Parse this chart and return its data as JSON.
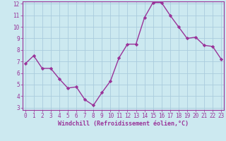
{
  "x": [
    0,
    1,
    2,
    3,
    4,
    5,
    6,
    7,
    8,
    9,
    10,
    11,
    12,
    13,
    14,
    15,
    16,
    17,
    18,
    19,
    20,
    21,
    22,
    23
  ],
  "y": [
    6.8,
    7.5,
    6.4,
    6.4,
    5.5,
    4.7,
    4.8,
    3.7,
    3.2,
    4.3,
    5.3,
    7.3,
    8.5,
    8.5,
    10.8,
    12.1,
    12.1,
    11.0,
    10.0,
    9.0,
    9.1,
    8.4,
    8.3,
    7.2
  ],
  "xlabel": "Windchill (Refroidissement éolien,°C)",
  "ylim_min": 3,
  "ylim_max": 12,
  "xlim_min": 0,
  "xlim_max": 23,
  "yticks": [
    3,
    4,
    5,
    6,
    7,
    8,
    9,
    10,
    11,
    12
  ],
  "xticks": [
    0,
    1,
    2,
    3,
    4,
    5,
    6,
    7,
    8,
    9,
    10,
    11,
    12,
    13,
    14,
    15,
    16,
    17,
    18,
    19,
    20,
    21,
    22,
    23
  ],
  "line_color": "#993399",
  "marker": "D",
  "marker_size": 2.2,
  "bg_color": "#cce9f0",
  "grid_color": "#aaccdd",
  "axis_color": "#993399",
  "tick_label_color": "#993399",
  "xlabel_color": "#993399",
  "line_width": 1.0,
  "tick_fontsize": 5.5,
  "xlabel_fontsize": 6.0
}
